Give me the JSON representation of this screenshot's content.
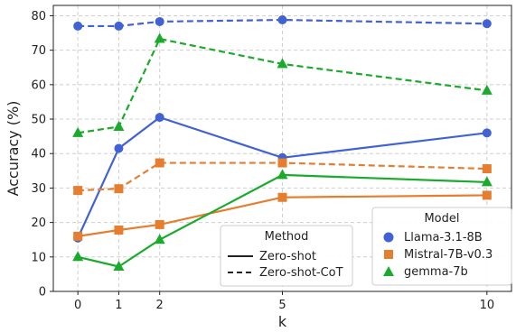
{
  "chart_data": {
    "type": "line",
    "xlabel": "k",
    "ylabel": "Accuracy (%)",
    "x": [
      0,
      1,
      2,
      5,
      10
    ],
    "xlim": [
      -0.6,
      10.6
    ],
    "ylim": [
      0,
      83
    ],
    "xticks": [
      0,
      1,
      2,
      5,
      10
    ],
    "yticks": [
      0,
      10,
      20,
      30,
      40,
      50,
      60,
      70,
      80
    ],
    "grid": true,
    "models": [
      {
        "name": "Llama-3.1-8B",
        "color": "#4162d4",
        "marker": "circle"
      },
      {
        "name": "Mistral-7B-v0.3",
        "color": "#e67e30",
        "marker": "square"
      },
      {
        "name": "gemma-7b",
        "color": "#1aaa2c",
        "marker": "triangle"
      }
    ],
    "methods": [
      {
        "name": "Zero-shot",
        "dash": "solid"
      },
      {
        "name": "Zero-shot-CoT",
        "dash": "dashed"
      }
    ],
    "series": [
      {
        "model": "Llama-3.1-8B",
        "method": "Zero-shot",
        "values": [
          15.5,
          41.5,
          50.5,
          38.8,
          46.0
        ]
      },
      {
        "model": "Llama-3.1-8B",
        "method": "Zero-shot-CoT",
        "values": [
          77.0,
          77.0,
          78.3,
          78.8,
          77.7
        ]
      },
      {
        "model": "Mistral-7B-v0.3",
        "method": "Zero-shot",
        "values": [
          16.0,
          17.8,
          19.4,
          27.3,
          27.9
        ]
      },
      {
        "model": "Mistral-7B-v0.3",
        "method": "Zero-shot-CoT",
        "values": [
          29.3,
          29.8,
          37.3,
          37.3,
          35.6
        ]
      },
      {
        "model": "gemma-7b",
        "method": "Zero-shot",
        "values": [
          10.0,
          7.2,
          15.0,
          33.8,
          31.7
        ]
      },
      {
        "model": "gemma-7b",
        "method": "Zero-shot-CoT",
        "values": [
          46.0,
          47.8,
          73.3,
          66.0,
          58.3
        ]
      }
    ],
    "legends": {
      "method_title": "Method",
      "model_title": "Model",
      "method_placement": "lower-center-right",
      "model_placement": "lower-right"
    }
  }
}
